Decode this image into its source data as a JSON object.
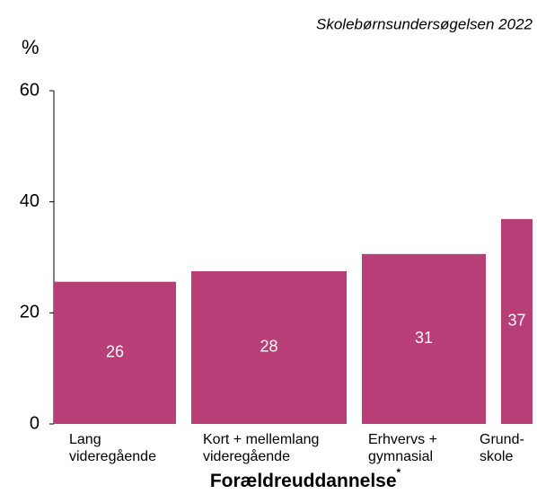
{
  "chart_data": {
    "type": "bar",
    "title": "Skolebørnsundersøgelsen 2022",
    "y_label": "%",
    "x_label": "Forældreuddannelse",
    "x_label_note": "*",
    "categories": [
      [
        "Lang",
        "videregående"
      ],
      [
        "Kort + mellemlang",
        "videregående"
      ],
      [
        "Erhvervs +",
        "gymnasial"
      ],
      [
        "Grund-",
        "skole"
      ]
    ],
    "values": [
      25.6,
      27.5,
      30.6,
      36.9
    ],
    "value_labels": [
      "26",
      "28",
      "31",
      "37"
    ],
    "color": "#b83e77",
    "ylim": [
      0,
      60
    ],
    "yticks": [
      0,
      20,
      40,
      60
    ],
    "grid": false
  }
}
